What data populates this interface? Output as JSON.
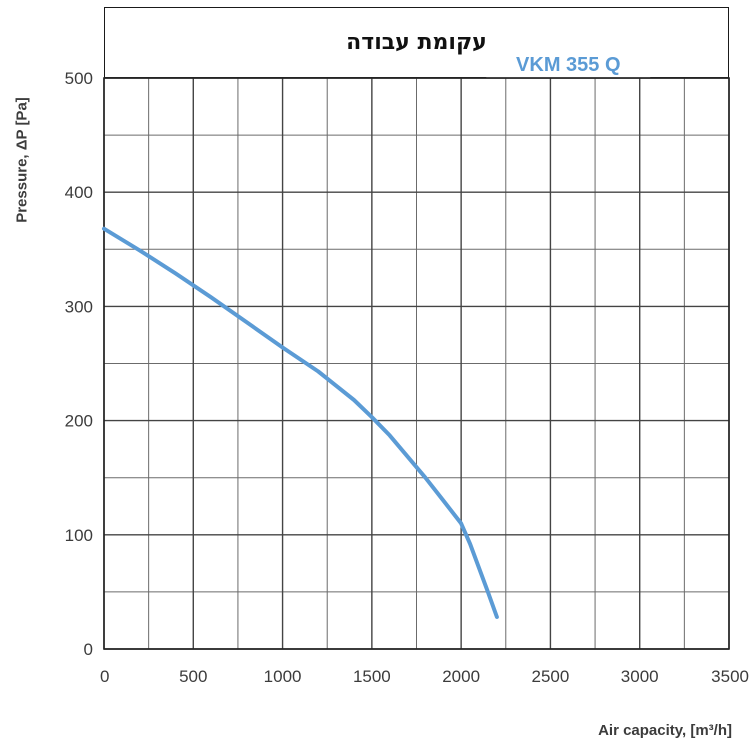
{
  "title": "עקומת עבודה",
  "chart_data": {
    "type": "line",
    "title": "עקומת עבודה",
    "xlabel": "Air capacity, [m³/h]",
    "ylabel": "Pressure, ΔP [Pa]",
    "xlim": [
      0,
      3500
    ],
    "ylim": [
      0,
      500
    ],
    "x_ticks": [
      0,
      500,
      1000,
      1500,
      2000,
      2500,
      3000,
      3500
    ],
    "y_ticks": [
      0,
      100,
      200,
      300,
      400,
      500
    ],
    "grid": true,
    "legend": "top-right",
    "series": [
      {
        "name": "VKM 355 Q",
        "color": "#5b9bd5",
        "x": [
          0,
          200,
          400,
          600,
          800,
          1000,
          1200,
          1400,
          1500,
          1600,
          1800,
          1900,
          2000,
          2050,
          2100,
          2150,
          2200
        ],
        "y": [
          368,
          349,
          329,
          308,
          286,
          264,
          243,
          218,
          203,
          187,
          150,
          130,
          110,
          92,
          71,
          50,
          28
        ]
      }
    ]
  }
}
